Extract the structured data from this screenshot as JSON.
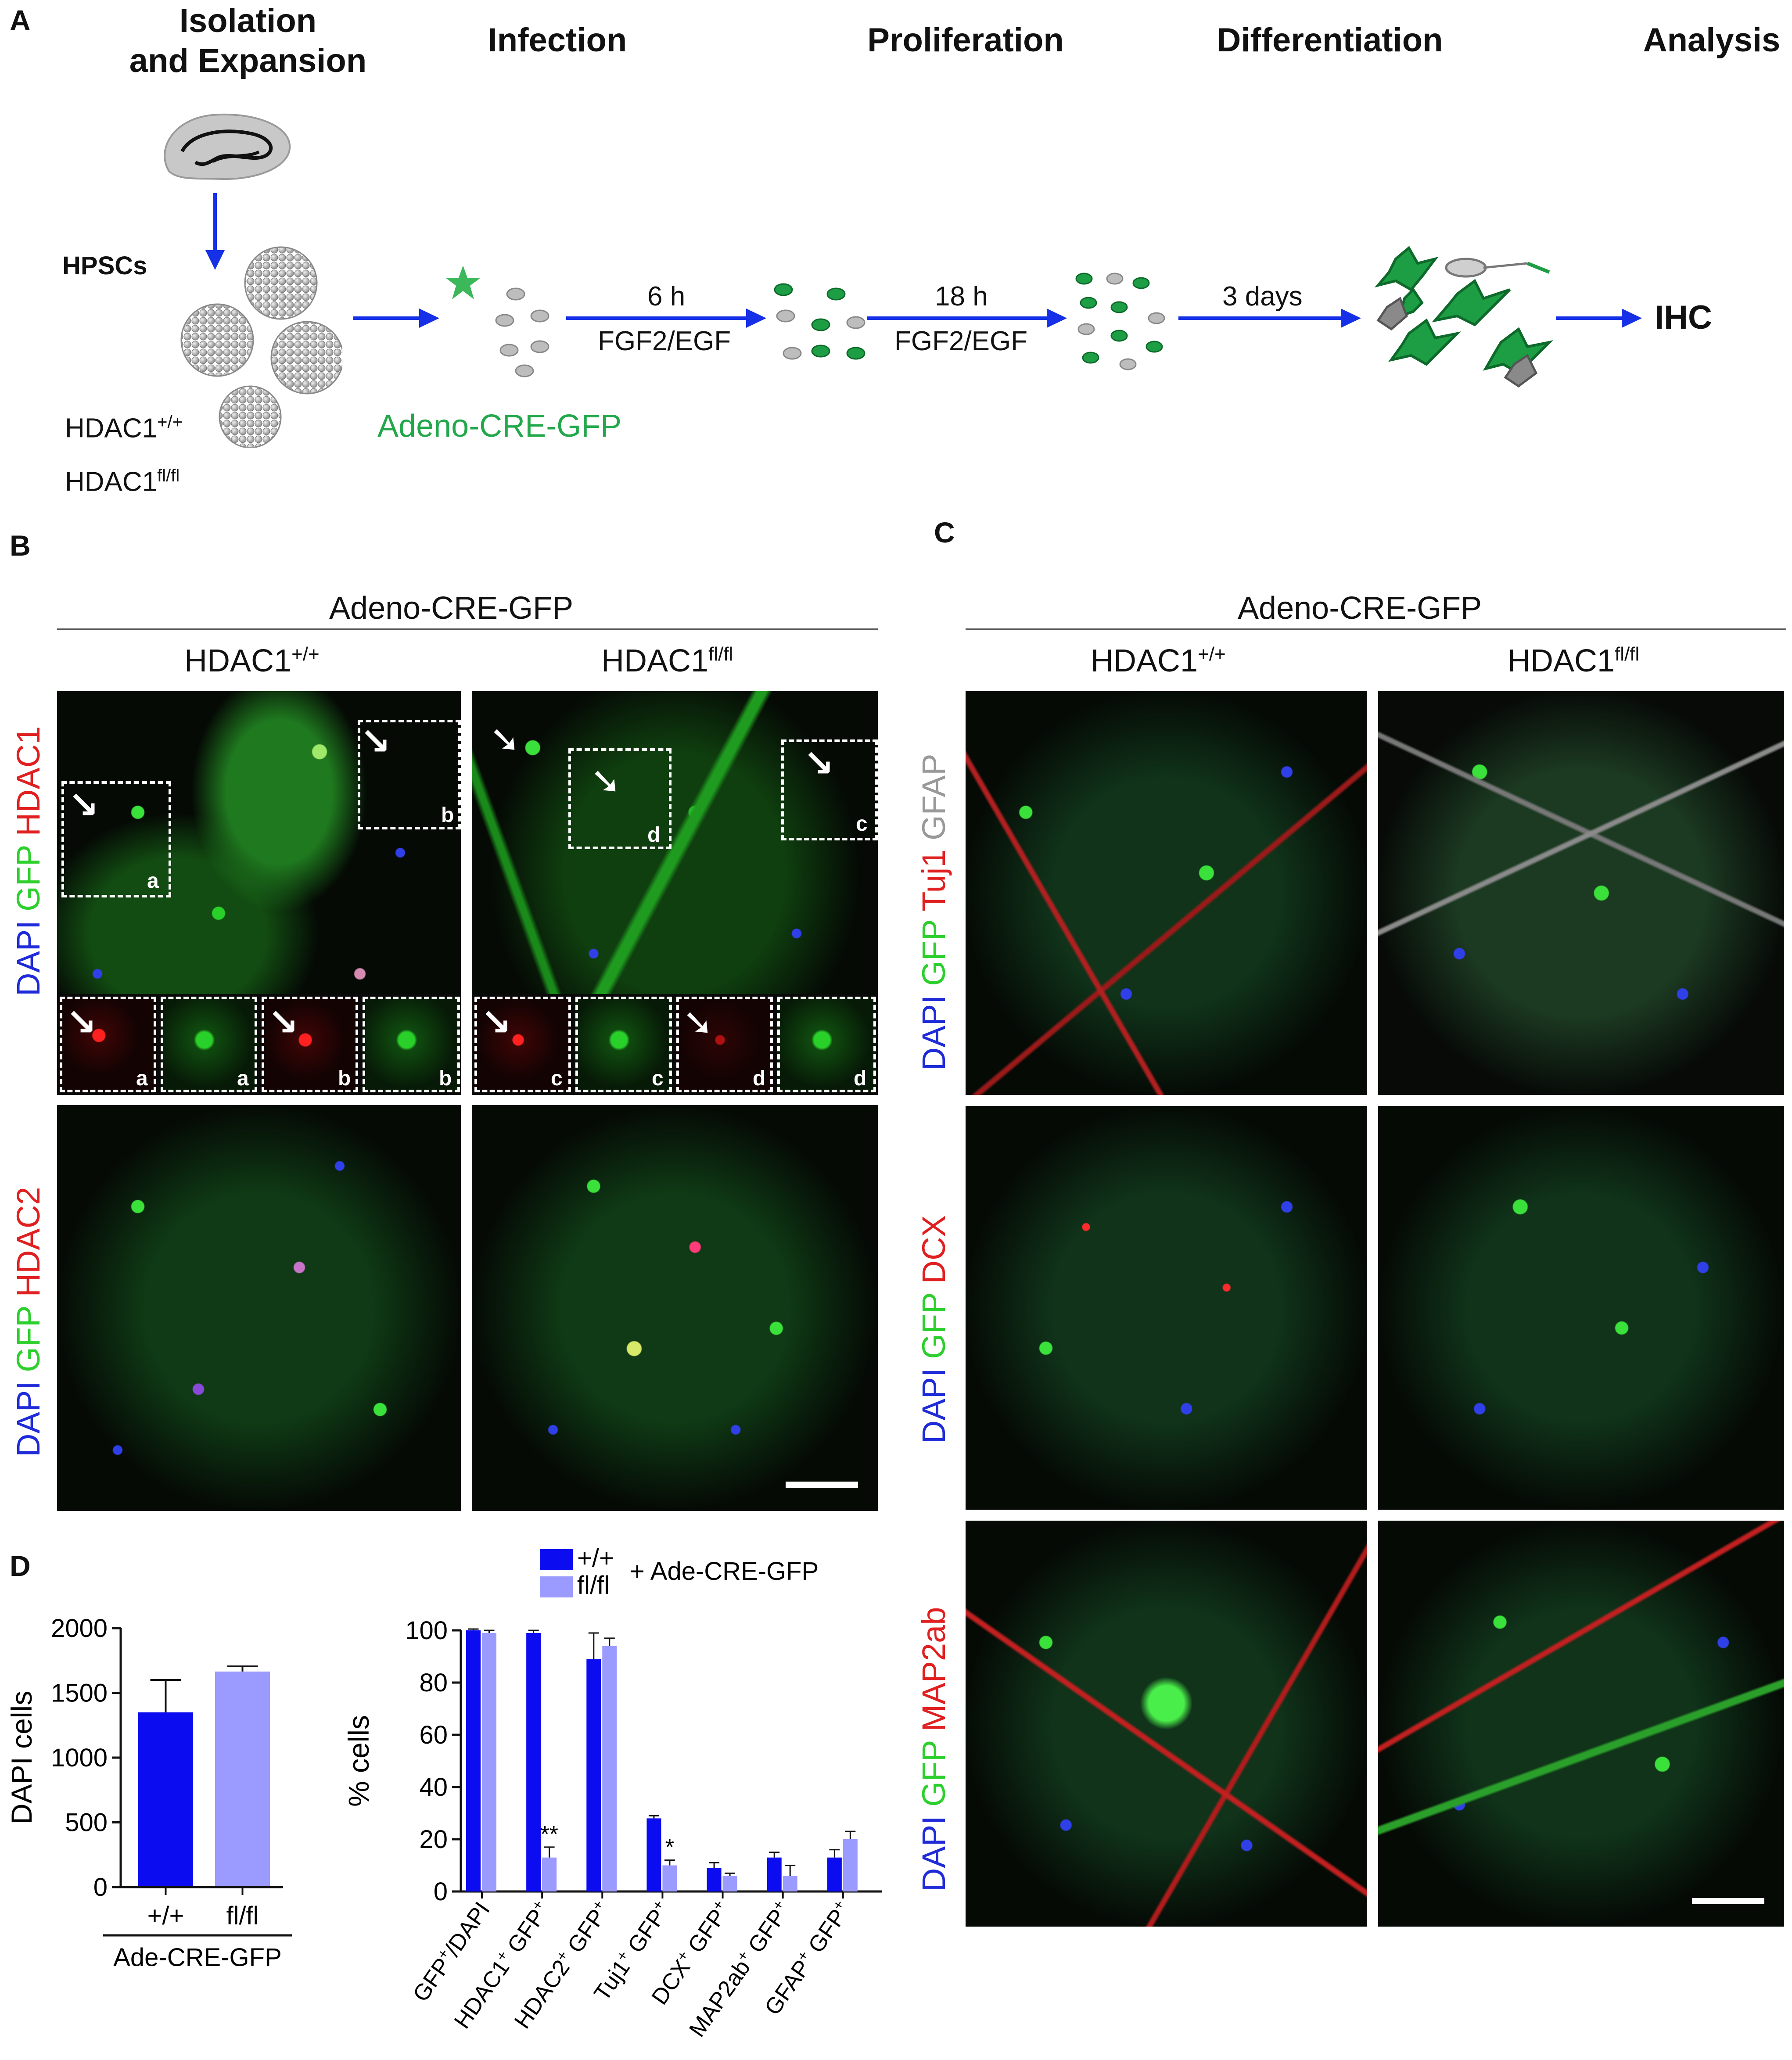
{
  "panel_a": {
    "letter": "A",
    "steps": [
      "Isolation\nand Expansion",
      "Infection",
      "Proliferation",
      "Differentiation",
      "Analysis"
    ],
    "hpscs": "HPSCs",
    "genotype_1": "HDAC1",
    "genotype_1_sup": "+/+",
    "genotype_2": "HDAC1",
    "genotype_2_sup": "fl/fl",
    "virus": "Adeno-CRE-GFP",
    "arrow_1_top": "6 h",
    "arrow_1_bottom": "FGF2/EGF",
    "arrow_2_top": "18 h",
    "arrow_2_bottom": "FGF2/EGF",
    "arrow_3_top": "3 days",
    "endpoint": "IHC"
  },
  "panel_b": {
    "letter": "B",
    "header": "Adeno-CRE-GFP",
    "col_1": "HDAC1",
    "col_1_sup": "+/+",
    "col_2": "HDAC1",
    "col_2_sup": "fl/fl",
    "row_1_stain": [
      "DAPI",
      "GFP",
      "HDAC1"
    ],
    "row_2_stain": [
      "DAPI",
      "GFP",
      "HDAC2"
    ],
    "inset_letters": [
      "a",
      "b",
      "d",
      "c",
      "a",
      "a",
      "b",
      "b",
      "c",
      "c",
      "d",
      "d"
    ]
  },
  "panel_c": {
    "letter": "C",
    "header": "Adeno-CRE-GFP",
    "col_1": "HDAC1",
    "col_1_sup": "+/+",
    "col_2": "HDAC1",
    "col_2_sup": "fl/fl",
    "row_1_stain": [
      "DAPI",
      "GFP",
      "Tuj1",
      "GFAP"
    ],
    "row_2_stain": [
      "DAPI",
      "GFP",
      "DCX"
    ],
    "row_3_stain": [
      "DAPI",
      "GFP",
      "MAP2ab"
    ]
  },
  "panel_d": {
    "letter": "D"
  },
  "colors": {
    "wt_blue": "#0c0cf0",
    "flfl_lavender": "#9a9aff",
    "dapi_blue": "#1f2bd8",
    "gfp_green": "#2ccf2c",
    "stain_red": "#e02020",
    "gfap_gray": "#999999",
    "virus_green": "#22a84b",
    "arrow_blue": "#1530e6"
  },
  "chart_data": [
    {
      "type": "bar",
      "title": "",
      "ylabel": "DAPI cells",
      "ylim": [
        0,
        2000
      ],
      "yticks": [
        0,
        500,
        1000,
        1500,
        2000
      ],
      "categories": [
        "+/+",
        "fl/fl"
      ],
      "group_label": "Ade-CRE-GFP",
      "values": [
        1350,
        1665
      ],
      "errors": [
        250,
        40
      ]
    },
    {
      "type": "bar",
      "title": "",
      "ylabel": "% cells",
      "ylim": [
        0,
        100
      ],
      "yticks": [
        0,
        20,
        40,
        60,
        80,
        100
      ],
      "legend": {
        "placement": "top",
        "note": "+ Ade-CRE-GFP"
      },
      "categories": [
        {
          "main": "GFP",
          "sup": "+",
          "tail": "/DAPI"
        },
        {
          "main": "HDAC1",
          "sup": "+",
          "tail": " GFP",
          "sup2": "+"
        },
        {
          "main": "HDAC2",
          "sup": "+",
          "tail": " GFP",
          "sup2": "+"
        },
        {
          "main": "Tuj1",
          "sup": "+",
          "tail": " GFP",
          "sup2": "+"
        },
        {
          "main": "DCX",
          "sup": "+",
          "tail": " GFP",
          "sup2": "+"
        },
        {
          "main": "MAP2ab",
          "sup": "+",
          "tail": " GFP",
          "sup2": "+"
        },
        {
          "main": "GFAP",
          "sup": "+",
          "tail": " GFP",
          "sup2": "+"
        }
      ],
      "series": [
        {
          "name": "+/+",
          "values": [
            100,
            99,
            89,
            28,
            9,
            13,
            13
          ],
          "errors": [
            0.5,
            1,
            10,
            1,
            2,
            2,
            3
          ]
        },
        {
          "name": "fl/fl",
          "values": [
            99,
            13,
            94,
            10,
            6,
            6,
            20
          ],
          "errors": [
            1,
            4,
            3,
            2,
            1,
            4,
            3
          ]
        }
      ],
      "annotations": [
        {
          "category_index": 1,
          "series": "fl/fl",
          "text": "**"
        },
        {
          "category_index": 3,
          "series": "fl/fl",
          "text": "*"
        }
      ]
    }
  ]
}
